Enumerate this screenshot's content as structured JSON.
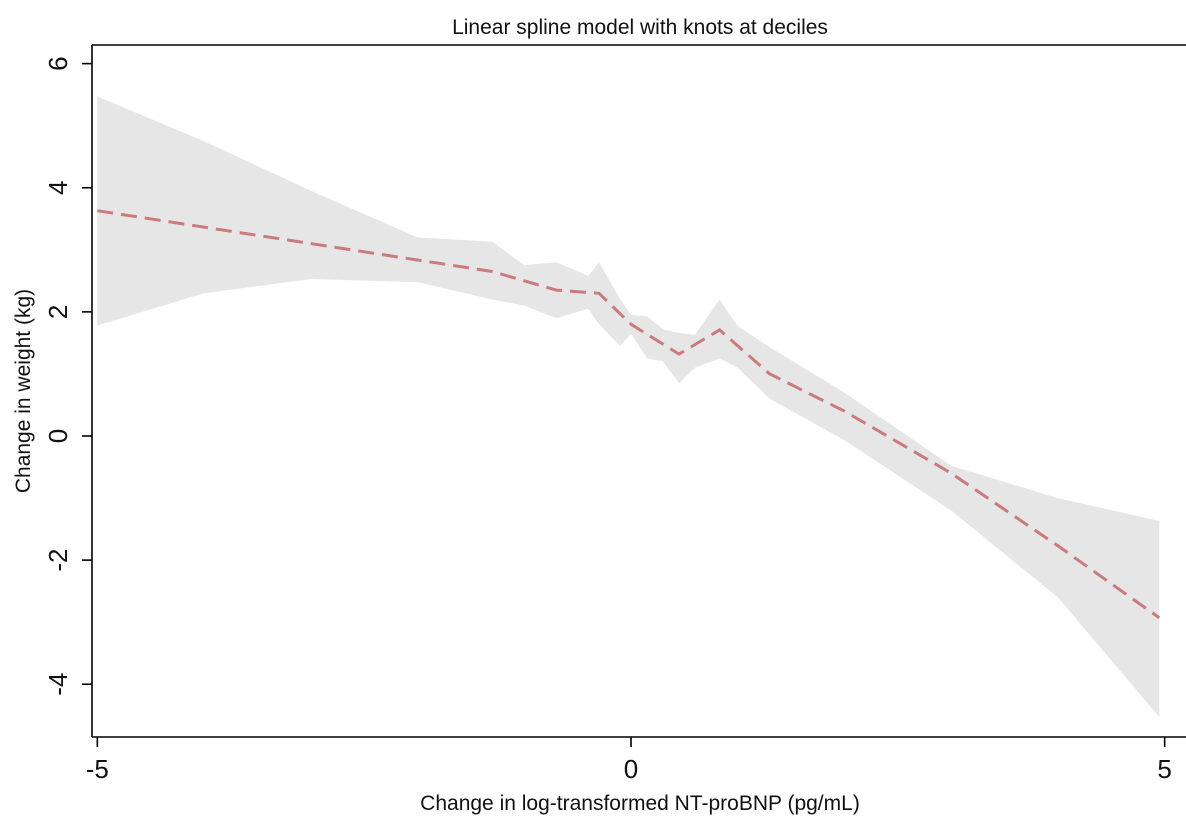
{
  "chart_data": {
    "type": "line",
    "title": "Linear spline model with knots at deciles",
    "xlabel": "Change in log-transformed NT-proBNP (pg/mL)",
    "ylabel": "Change in weight (kg)",
    "xlim": [
      -5.05,
      5.2
    ],
    "ylim": [
      -4.85,
      6.3
    ],
    "x_ticks": [
      -5,
      0,
      5
    ],
    "x_tick_labels": [
      "-5",
      "0",
      "5"
    ],
    "y_ticks": [
      -4,
      -2,
      0,
      2,
      4,
      6
    ],
    "y_tick_labels": [
      "-4",
      "-2",
      "0",
      "2",
      "4",
      "6"
    ],
    "grid": false,
    "colors": {
      "line": "#c97b7e",
      "band": "#e6e6e6",
      "axis": "#000000"
    },
    "series": [
      {
        "style": "dashed",
        "x": [
          -5.0,
          -1.3,
          -0.7,
          -0.3,
          0.0,
          0.45,
          0.83,
          1.3,
          2.0,
          3.0,
          4.0,
          4.95
        ],
        "y": [
          3.63,
          2.65,
          2.35,
          2.3,
          1.8,
          1.32,
          1.71,
          1.0,
          0.4,
          -0.6,
          -1.77,
          -2.93
        ]
      }
    ],
    "confidence_band": {
      "x": [
        -5.0,
        -4.0,
        -3.0,
        -2.0,
        -1.3,
        -1.0,
        -0.7,
        -0.4,
        -0.3,
        -0.1,
        0.0,
        0.15,
        0.3,
        0.45,
        0.6,
        0.83,
        1.0,
        1.3,
        2.0,
        3.0,
        4.0,
        4.95
      ],
      "upper": [
        5.47,
        4.75,
        3.95,
        3.2,
        3.13,
        2.75,
        2.8,
        2.58,
        2.8,
        2.2,
        1.95,
        1.93,
        1.72,
        1.66,
        1.63,
        2.2,
        1.77,
        1.43,
        0.7,
        -0.48,
        -1.0,
        -1.37
      ],
      "lower": [
        1.78,
        2.3,
        2.53,
        2.48,
        2.2,
        2.1,
        1.9,
        2.05,
        1.8,
        1.45,
        1.65,
        1.25,
        1.2,
        0.85,
        1.1,
        1.25,
        1.1,
        0.6,
        -0.07,
        -1.2,
        -2.6,
        -4.53
      ]
    }
  }
}
